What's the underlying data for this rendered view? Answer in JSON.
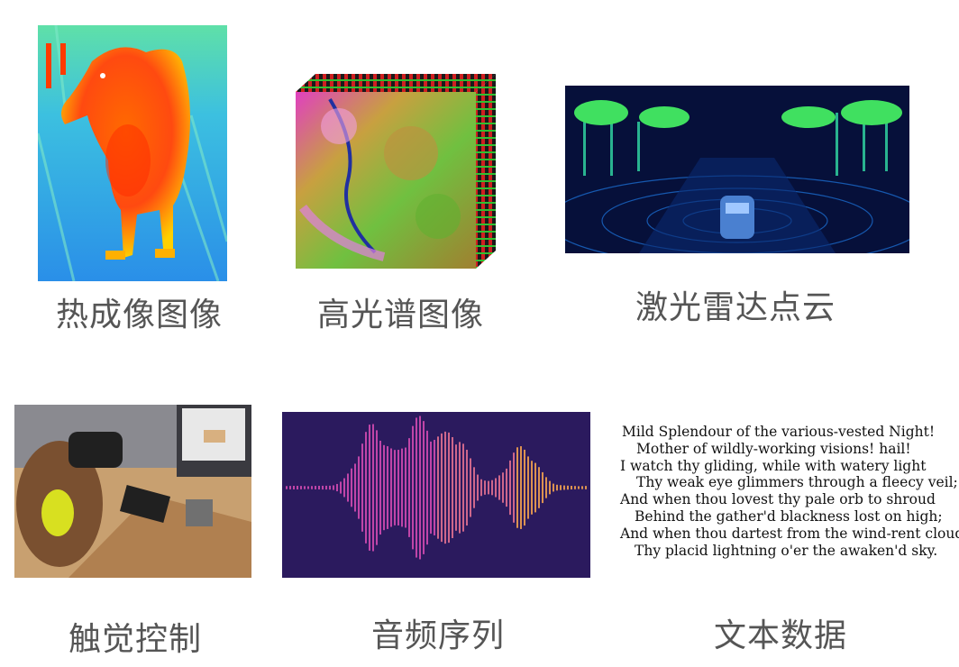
{
  "tiles": [
    {
      "id": "thermal",
      "caption": "热成像图像"
    },
    {
      "id": "hyperspectral",
      "caption": "高光谱图像"
    },
    {
      "id": "lidar",
      "caption": "激光雷达点云"
    },
    {
      "id": "haptic",
      "caption": "触觉控制"
    },
    {
      "id": "audio",
      "caption": "音频序列"
    },
    {
      "id": "text",
      "caption": "文本数据"
    }
  ],
  "poem": {
    "lines": [
      "Mild Splendour of the various-vested Night!",
      "Mother of wildly-working visions! hail!",
      "I watch thy gliding, while with watery light",
      "Thy weak eye glimmers through a fleecy veil;",
      "And when thou lovest thy pale orb to shroud",
      "Behind the gather'd blackness lost on high;",
      "And when thou dartest from the wind-rent cloud",
      "Thy placid lightning o'er the awaken'd sky."
    ]
  },
  "colors": {
    "caption": "#555555",
    "thermal_bg": "#2fa7e6",
    "audio_bg": "#2b1a5e",
    "lidar_bg": "#06103a"
  }
}
